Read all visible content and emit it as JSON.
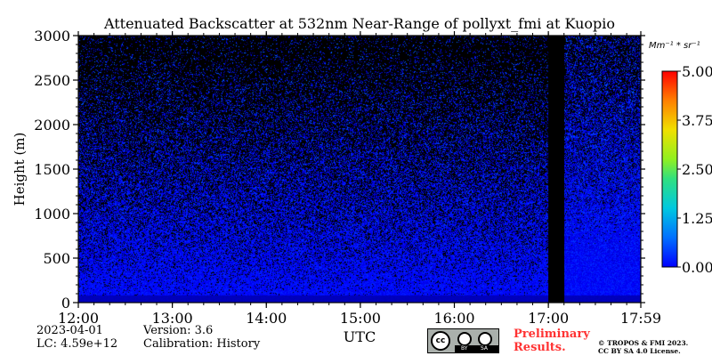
{
  "chart_data": {
    "type": "heatmap",
    "title": "Attenuated Backscatter at 532nm Near-Range of pollyxt_fmi at Kuopio",
    "xlabel": "UTC",
    "ylabel": "Height (m)",
    "x_ticks": [
      "12:00",
      "13:00",
      "14:00",
      "15:00",
      "16:00",
      "17:00",
      "17:59"
    ],
    "x_range": [
      "12:00",
      "17:59"
    ],
    "y_ticks": [
      0,
      500,
      1000,
      1500,
      2000,
      2500,
      3000
    ],
    "ylim": [
      0,
      3000
    ],
    "colorbar": {
      "unit": "Mm⁻¹ * sr⁻¹",
      "range": [
        0.0,
        5.0
      ],
      "tick_labels": [
        "0.00",
        "1.25",
        "2.50",
        "3.75",
        "5.00"
      ],
      "ticks": [
        0.0,
        1.25,
        2.5,
        3.75,
        5.0
      ],
      "colormap": "jet"
    },
    "no_data_interval": [
      "17:00",
      "17:10"
    ],
    "profile": [
      {
        "height": 0,
        "value": 0.35
      },
      {
        "height": 100,
        "value": 0.6
      },
      {
        "height": 500,
        "value": 0.55
      },
      {
        "height": 1000,
        "value": 0.5
      },
      {
        "height": 1500,
        "value": 0.45
      },
      {
        "height": 2000,
        "value": 0.4
      },
      {
        "height": 2500,
        "value": 0.35
      },
      {
        "height": 3000,
        "value": 0.3
      }
    ],
    "grid": false
  },
  "footer": {
    "date": "2023-04-01",
    "lc": "LC: 4.59e+12",
    "version": "Version: 3.6",
    "calibration": "Calibration: History",
    "license_badge": {
      "cc": "cc",
      "by": "BY",
      "sa": "SA"
    },
    "preliminary": "Preliminary",
    "results": "Results.",
    "copyright_line1": "© TROPOS & FMI 2023.",
    "copyright_line2": "CC BY SA 4.0 License."
  }
}
